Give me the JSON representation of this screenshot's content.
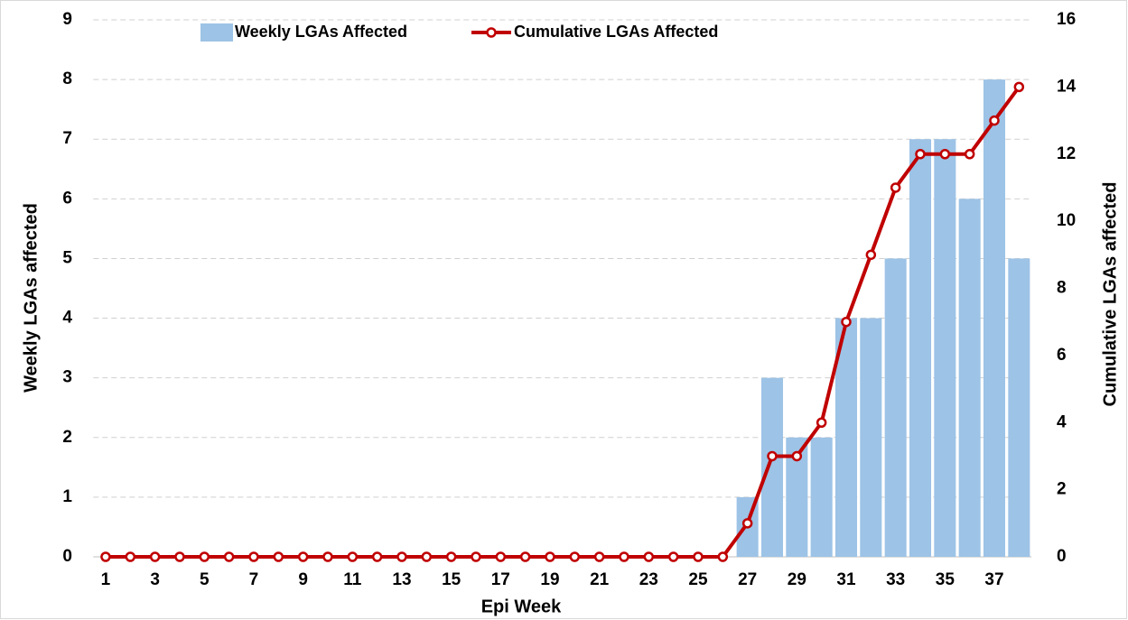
{
  "chart_data": {
    "type": "bar",
    "categories": [
      1,
      null,
      3,
      null,
      5,
      null,
      7,
      null,
      9,
      null,
      11,
      null,
      13,
      null,
      15,
      null,
      17,
      null,
      19,
      null,
      21,
      null,
      23,
      null,
      25,
      null,
      27,
      null,
      29,
      null,
      31,
      null,
      33,
      null,
      35,
      null,
      37,
      null
    ],
    "x_label": "Epi Week",
    "y_label": "Weekly LGAs affected",
    "y2_label": "Cumulative LGAs affected",
    "ylim": [
      0,
      9
    ],
    "yticks": [
      0,
      1,
      2,
      3,
      4,
      5,
      6,
      7,
      8,
      9
    ],
    "y2lim": [
      0,
      16
    ],
    "y2ticks": [
      0,
      2,
      4,
      6,
      8,
      10,
      12,
      14,
      16
    ],
    "grid": true,
    "series": [
      {
        "name": "Weekly LGAs Affected",
        "type": "bar",
        "color": "#9dc3e6",
        "values": [
          0,
          0,
          0,
          0,
          0,
          0,
          0,
          0,
          0,
          0,
          0,
          0,
          0,
          0,
          0,
          0,
          0,
          0,
          0,
          0,
          0,
          0,
          0,
          0,
          0,
          0,
          1,
          3,
          2,
          2,
          4,
          4,
          5,
          7,
          7,
          6,
          8,
          5
        ]
      },
      {
        "name": "Cumulative LGAs Affected",
        "type": "line",
        "axis": "y2",
        "color": "#c00000",
        "values": [
          0,
          0,
          0,
          0,
          0,
          0,
          0,
          0,
          0,
          0,
          0,
          0,
          0,
          0,
          0,
          0,
          0,
          0,
          0,
          0,
          0,
          0,
          0,
          0,
          0,
          0,
          1,
          3,
          3,
          4,
          7,
          9,
          11,
          12,
          12,
          12,
          13,
          14
        ]
      }
    ]
  }
}
